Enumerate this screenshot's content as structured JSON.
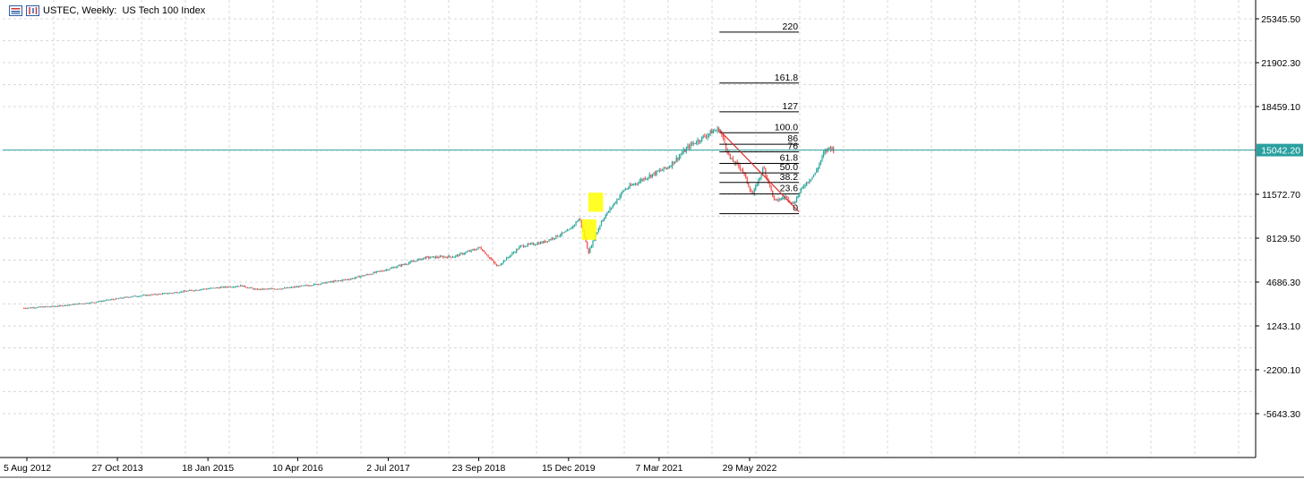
{
  "header": {
    "symbol": "USTEC",
    "timeframe": "Weekly:",
    "description": "US Tech 100 Index",
    "icons": [
      "candles-chart-icon",
      "bar-chart-icon"
    ]
  },
  "colors": {
    "background": "#ffffff",
    "grid": "#d8d8d8",
    "bull_candle": "#26a69a",
    "bear_candle": "#ef5350",
    "current_price_line": "#2aa0a0",
    "trendline": "#e03030",
    "fib_lines": "#000000",
    "highlight": "#ffff00"
  },
  "current_price": {
    "value": 15042.2,
    "label": "15042.20"
  },
  "chart_data": {
    "type": "candlestick",
    "title": "USTEC, Weekly:  US Tech 100 Index",
    "ylim": [
      -7300,
      27000
    ],
    "y_ticks": [
      {
        "value": 25345.5,
        "label": "25345.50"
      },
      {
        "value": 21902.3,
        "label": "21902.30"
      },
      {
        "value": 18459.1,
        "label": "18459.10"
      },
      {
        "value": 11572.7,
        "label": "11572.70"
      },
      {
        "value": 8129.5,
        "label": "8129.50"
      },
      {
        "value": 4686.3,
        "label": "4686.30"
      },
      {
        "value": 1243.1,
        "label": "1243.10"
      },
      {
        "value": -2200.1,
        "label": "-2200.10"
      },
      {
        "value": -5643.3,
        "label": "-5643.30"
      }
    ],
    "x_ticks": [
      {
        "t": 2012.59,
        "label": "5 Aug 2012"
      },
      {
        "t": 2013.82,
        "label": "27 Oct 2013"
      },
      {
        "t": 2015.05,
        "label": "18 Jan 2015"
      },
      {
        "t": 2016.27,
        "label": "10 Apr 2016"
      },
      {
        "t": 2017.5,
        "label": "2 Jul 2017"
      },
      {
        "t": 2018.73,
        "label": "23 Sep 2018"
      },
      {
        "t": 2019.95,
        "label": "15 Dec 2019"
      },
      {
        "t": 2021.18,
        "label": "7 Mar 2021"
      },
      {
        "t": 2022.41,
        "label": "29 May 2022"
      }
    ],
    "price_path": [
      [
        2012.55,
        2650
      ],
      [
        2013.0,
        2800
      ],
      [
        2013.5,
        3100
      ],
      [
        2014.0,
        3550
      ],
      [
        2014.5,
        3800
      ],
      [
        2015.0,
        4150
      ],
      [
        2015.5,
        4400
      ],
      [
        2015.7,
        4100
      ],
      [
        2016.1,
        4200
      ],
      [
        2016.5,
        4500
      ],
      [
        2017.0,
        4950
      ],
      [
        2017.5,
        5700
      ],
      [
        2018.0,
        6600
      ],
      [
        2018.4,
        6700
      ],
      [
        2018.75,
        7400
      ],
      [
        2018.98,
        5900
      ],
      [
        2019.3,
        7500
      ],
      [
        2019.6,
        7800
      ],
      [
        2019.95,
        8700
      ],
      [
        2020.1,
        9700
      ],
      [
        2020.22,
        7000
      ],
      [
        2020.4,
        9500
      ],
      [
        2020.7,
        11900
      ],
      [
        2021.0,
        12900
      ],
      [
        2021.3,
        13700
      ],
      [
        2021.6,
        15400
      ],
      [
        2021.9,
        16500
      ],
      [
        2022.0,
        16700
      ],
      [
        2022.15,
        14300
      ],
      [
        2022.3,
        13600
      ],
      [
        2022.45,
        11500
      ],
      [
        2022.6,
        13700
      ],
      [
        2022.75,
        11000
      ],
      [
        2022.9,
        11400
      ],
      [
        2023.0,
        10800
      ],
      [
        2023.15,
        12300
      ],
      [
        2023.3,
        13200
      ],
      [
        2023.42,
        14800
      ],
      [
        2023.5,
        15300
      ],
      [
        2023.55,
        15042
      ]
    ],
    "fibonacci": {
      "t_start": 2022.0,
      "t_end": 2023.08,
      "levels": [
        {
          "label": "220",
          "value": 24300
        },
        {
          "label": "161.8",
          "value": 20300
        },
        {
          "label": "127",
          "value": 18050
        },
        {
          "label": "100.0",
          "value": 16400
        },
        {
          "label": "86",
          "value": 15500
        },
        {
          "label": "76",
          "value": 14900
        },
        {
          "label": "61.8",
          "value": 14000
        },
        {
          "label": "50.0",
          "value": 13250
        },
        {
          "label": "38.2",
          "value": 12500
        },
        {
          "label": "23.6",
          "value": 11600
        },
        {
          "label": "0",
          "value": 10050
        }
      ]
    },
    "trendline": {
      "t1": 2022.0,
      "v1": 16600,
      "t2": 2023.08,
      "v2": 10200
    },
    "highlights": [
      {
        "t1": 2020.22,
        "t2": 2020.42,
        "v1": 10200,
        "v2": 11700
      },
      {
        "t1": 2020.13,
        "t2": 2020.33,
        "v1": 8000,
        "v2": 9600
      }
    ],
    "grid": true
  }
}
